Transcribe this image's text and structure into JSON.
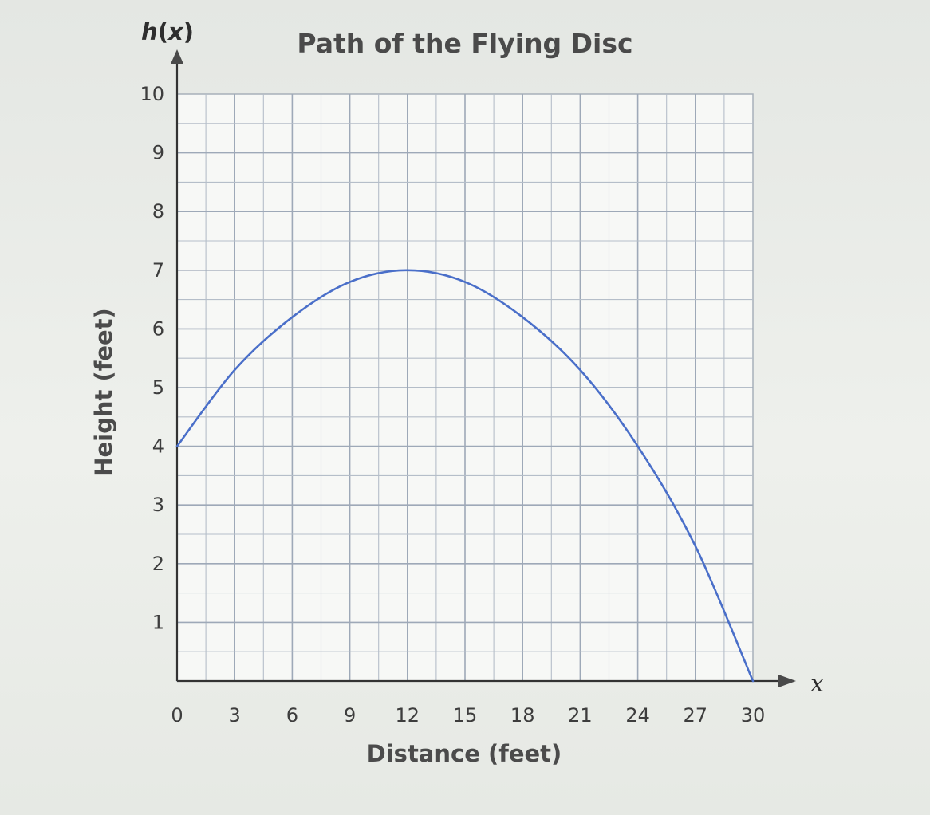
{
  "chart_data": {
    "type": "line",
    "title": "Path of the Flying Disc",
    "xlabel": "Distance (feet)",
    "ylabel": "Height (feet)",
    "x_variable": "x",
    "y_function_label": "h(x)",
    "xlim": [
      0,
      30
    ],
    "ylim": [
      0,
      10
    ],
    "x_ticks": [
      "0",
      "3",
      "6",
      "9",
      "12",
      "15",
      "18",
      "21",
      "24",
      "27",
      "30"
    ],
    "y_ticks": [
      "1",
      "2",
      "3",
      "4",
      "5",
      "6",
      "7",
      "8",
      "9",
      "10"
    ],
    "grid": true,
    "series": [
      {
        "color": "#4a6fc9",
        "x": [
          0,
          3,
          6,
          9,
          12,
          15,
          18,
          21,
          24,
          27,
          30
        ],
        "y": [
          4.0,
          5.3,
          6.2,
          6.8,
          7.0,
          6.8,
          6.2,
          5.3,
          4.0,
          2.3,
          0.0
        ]
      }
    ]
  }
}
